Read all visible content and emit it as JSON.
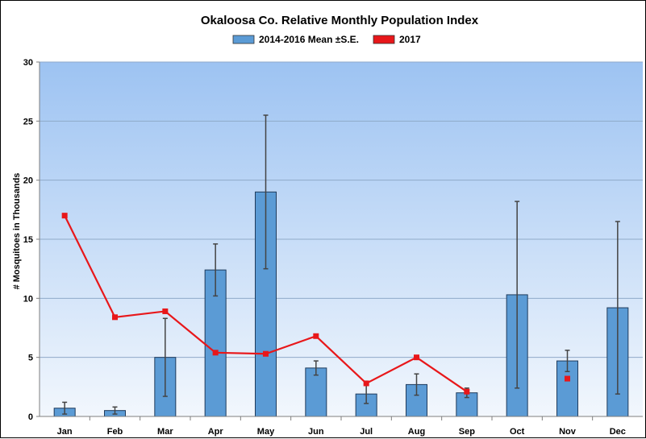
{
  "chart_data": {
    "type": "bar",
    "title": "Okaloosa Co. Relative Monthly Population Index",
    "xlabel": "",
    "ylabel": "# Mosquitoes in Thousands",
    "ylim": [
      0,
      30
    ],
    "yticks": [
      0,
      5,
      10,
      15,
      20,
      25,
      30
    ],
    "grid": true,
    "legend_position": "top-center",
    "categories": [
      "Jan",
      "Feb",
      "Mar",
      "Apr",
      "May",
      "Jun",
      "Jul",
      "Aug",
      "Sep",
      "Oct",
      "Nov",
      "Dec"
    ],
    "series": [
      {
        "name": "2014-2016 Mean ±S.E.",
        "type": "bar",
        "color": "#5b9bd5",
        "values": [
          0.7,
          0.5,
          5.0,
          12.4,
          19.0,
          4.1,
          1.9,
          2.7,
          2.0,
          10.3,
          4.7,
          9.2
        ],
        "error": [
          0.5,
          0.3,
          3.3,
          2.2,
          6.5,
          0.6,
          0.8,
          0.9,
          0.4,
          7.9,
          0.9,
          7.3
        ]
      },
      {
        "name": "2017",
        "type": "line",
        "color": "#e8171a",
        "values": [
          17.0,
          8.4,
          8.9,
          5.4,
          5.3,
          6.8,
          2.8,
          5.0,
          2.1,
          null,
          3.2,
          null
        ]
      }
    ]
  }
}
